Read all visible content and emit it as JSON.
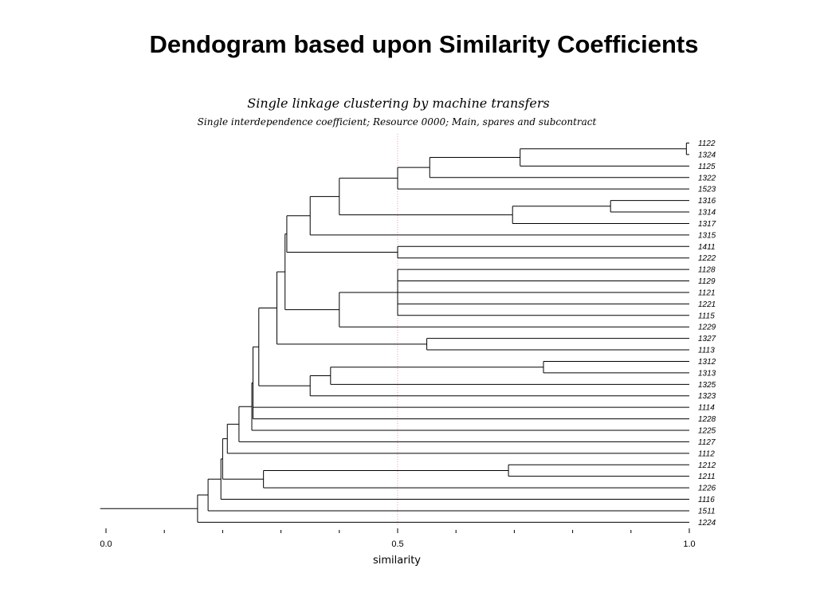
{
  "slide": {
    "title": "Dendogram based upon Similarity Coefficients"
  },
  "chart_data": {
    "type": "dendrogram",
    "title": "Single linkage clustering by machine transfers",
    "subtitle": "Single interdependence coefficient; Resource 0000; Main, spares and subcontract",
    "xlabel": "similarity",
    "xlim": [
      0,
      1
    ],
    "x_ticks": [
      {
        "value": 0,
        "label": "0.0"
      },
      {
        "value": 0.5,
        "label": "0.5"
      },
      {
        "value": 1,
        "label": "1.0"
      }
    ],
    "reference_line": 0.5,
    "reference_color": "#e8a0b0",
    "leaves": [
      "1122",
      "1324",
      "1125",
      "1322",
      "1523",
      "1316",
      "1314",
      "1317",
      "1315",
      "1411",
      "1222",
      "1128",
      "1129",
      "1121",
      "1221",
      "1115",
      "1229",
      "1327",
      "1113",
      "1312",
      "1313",
      "1325",
      "1323",
      "1114",
      "1228",
      "1225",
      "1127",
      "1112",
      "1212",
      "1211",
      "1226",
      "1116",
      "1511",
      "1224"
    ],
    "merges": [
      {
        "id": "c1",
        "children": [
          "1122",
          "1324"
        ],
        "similarity": 0.995
      },
      {
        "id": "c2",
        "children": [
          "c1",
          "1125"
        ],
        "similarity": 0.71
      },
      {
        "id": "c3",
        "children": [
          "c2",
          "1322"
        ],
        "similarity": 0.555
      },
      {
        "id": "c4",
        "children": [
          "c3",
          "1523"
        ],
        "similarity": 0.5
      },
      {
        "id": "c5",
        "children": [
          "1316",
          "1314"
        ],
        "similarity": 0.865
      },
      {
        "id": "c6",
        "children": [
          "c5",
          "1317"
        ],
        "similarity": 0.697
      },
      {
        "id": "c7",
        "children": [
          "c4",
          "c6"
        ],
        "similarity": 0.4
      },
      {
        "id": "c8",
        "children": [
          "c7",
          "1315"
        ],
        "similarity": 0.35
      },
      {
        "id": "c9",
        "children": [
          "1411",
          "1222"
        ],
        "similarity": 0.5
      },
      {
        "id": "c10",
        "children": [
          "c8",
          "c9"
        ],
        "similarity": 0.31
      },
      {
        "id": "c11",
        "children": [
          "1128",
          "1129",
          "1121",
          "1221",
          "1115"
        ],
        "similarity": 0.5
      },
      {
        "id": "c12",
        "children": [
          "c11",
          "1229"
        ],
        "similarity": 0.4
      },
      {
        "id": "c13",
        "children": [
          "c10",
          "c12"
        ],
        "similarity": 0.307
      },
      {
        "id": "c14",
        "children": [
          "1327",
          "1113"
        ],
        "similarity": 0.55
      },
      {
        "id": "c15",
        "children": [
          "c13",
          "c14"
        ],
        "similarity": 0.293
      },
      {
        "id": "c16",
        "children": [
          "1312",
          "1313"
        ],
        "similarity": 0.75
      },
      {
        "id": "c17",
        "children": [
          "c16",
          "1325"
        ],
        "similarity": 0.385
      },
      {
        "id": "c18",
        "children": [
          "c17",
          "1323"
        ],
        "similarity": 0.35
      },
      {
        "id": "c19",
        "children": [
          "c15",
          "c18"
        ],
        "similarity": 0.262
      },
      {
        "id": "c20",
        "children": [
          "c19",
          "1114",
          "1228"
        ],
        "similarity": 0.252
      },
      {
        "id": "c21",
        "children": [
          "c20",
          "1225"
        ],
        "similarity": 0.25
      },
      {
        "id": "c22",
        "children": [
          "c21",
          "1127"
        ],
        "similarity": 0.228
      },
      {
        "id": "c23",
        "children": [
          "c22",
          "1112"
        ],
        "similarity": 0.208
      },
      {
        "id": "c24",
        "children": [
          "1212",
          "1211"
        ],
        "similarity": 0.69
      },
      {
        "id": "c25",
        "children": [
          "c24",
          "1226"
        ],
        "similarity": 0.27
      },
      {
        "id": "c26",
        "children": [
          "c23",
          "c25"
        ],
        "similarity": 0.2
      },
      {
        "id": "c27",
        "children": [
          "c26",
          "1116"
        ],
        "similarity": 0.197
      },
      {
        "id": "c28",
        "children": [
          "c27",
          "1511"
        ],
        "similarity": 0.175
      },
      {
        "id": "c29",
        "children": [
          "c28",
          "1224"
        ],
        "similarity": 0.157
      }
    ],
    "root_stem_to": -0.01
  }
}
